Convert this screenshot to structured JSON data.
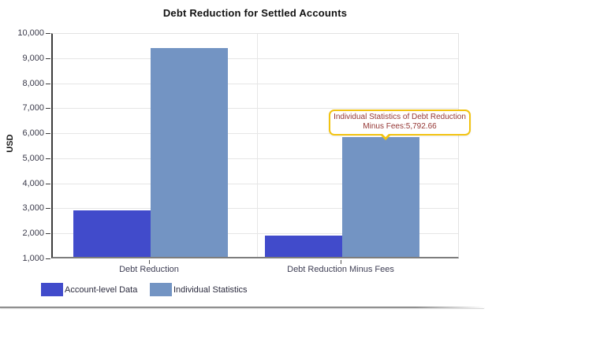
{
  "chart": {
    "title": "Debt Reduction for Settled Accounts",
    "y_axis_label": "USD"
  },
  "chart_data": {
    "type": "bar",
    "title": "Debt Reduction for Settled Accounts",
    "categories": [
      "Debt Reduction",
      "Debt Reduction Minus Fees"
    ],
    "series": [
      {
        "name": "Account-level Data",
        "color": "#414bcb",
        "values": [
          2860,
          1850
        ]
      },
      {
        "name": "Individual Statistics",
        "color": "#7394c3",
        "values": [
          9330,
          5792.66
        ]
      }
    ],
    "xlabel": "",
    "ylabel": "USD",
    "ylim": [
      1000,
      10000
    ],
    "y_tick_step": 1000,
    "y_tick_labels": [
      "10,000",
      "9,000",
      "8,000",
      "7,000",
      "6,000",
      "5,000",
      "4,000",
      "3,000",
      "2,000",
      "1,000"
    ],
    "grid": true,
    "legend_position": "bottom",
    "annotations": [
      {
        "text": "Individual Statistics of Debt Reduction Minus Fees:5,792.66",
        "target_value": 5792.66
      }
    ]
  },
  "tooltip": {
    "line1": "Individual Statistics of Debt Reduction",
    "line2": "Minus Fees:5,792.66",
    "border_color": "#f2c311",
    "text_color": "#943634"
  },
  "colors": {
    "account_level": "#414bcb",
    "individual_statistics": "#7394c3",
    "gridline": "#e6e6e6",
    "axis": "#3d3d3d"
  }
}
